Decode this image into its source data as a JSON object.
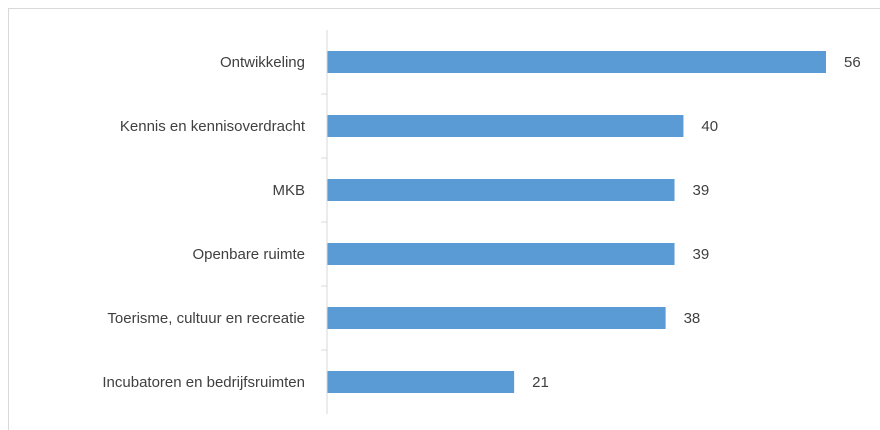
{
  "chart_data": {
    "type": "bar",
    "orientation": "horizontal",
    "categories": [
      "Ontwikkeling",
      "Kennis en kennisoverdracht",
      "MKB",
      "Openbare ruimte",
      "Toerisme, cultuur en recreatie",
      "Incubatoren en bedrijfsruimten"
    ],
    "values": [
      56,
      40,
      39,
      39,
      38,
      21
    ],
    "color": "#5b9bd5"
  }
}
